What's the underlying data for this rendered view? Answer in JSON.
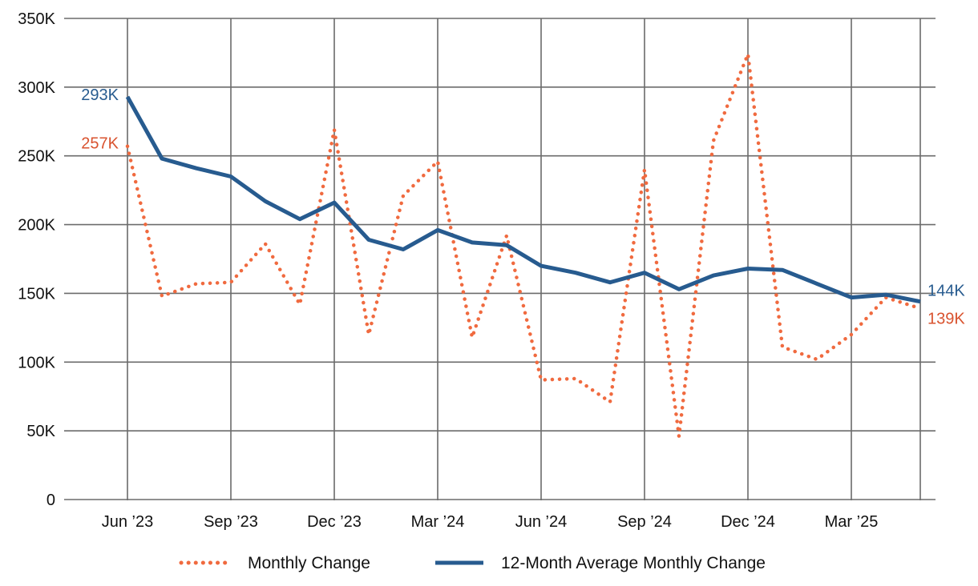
{
  "colors": {
    "monthly": "#f06a3f",
    "average": "#275b8f",
    "monthly_label": "#d9532f",
    "grid": "#6b6b6b"
  },
  "chart_data": {
    "type": "line",
    "title": "",
    "xlabel": "",
    "ylabel": "",
    "ylim": [
      0,
      350000
    ],
    "y_ticks": [
      0,
      50000,
      100000,
      150000,
      200000,
      250000,
      300000,
      350000
    ],
    "y_tick_labels": [
      "0",
      "50K",
      "100K",
      "150K",
      "200K",
      "250K",
      "300K",
      "350K"
    ],
    "x_tick_labels": [
      "Jun ’23",
      "Sep ’23",
      "Dec ’23",
      "Mar ’24",
      "Jun ’24",
      "Sep ’24",
      "Dec ’24",
      "Mar ’25"
    ],
    "x_tick_months": [
      "2023-06",
      "2023-09",
      "2023-12",
      "2024-03",
      "2024-06",
      "2024-09",
      "2024-12",
      "2025-03"
    ],
    "x": [
      "2023-06",
      "2023-07",
      "2023-08",
      "2023-09",
      "2023-10",
      "2023-11",
      "2023-12",
      "2024-01",
      "2024-02",
      "2024-03",
      "2024-04",
      "2024-05",
      "2024-06",
      "2024-07",
      "2024-08",
      "2024-09",
      "2024-10",
      "2024-11",
      "2024-12",
      "2025-01",
      "2025-02",
      "2025-03",
      "2025-04",
      "2025-05"
    ],
    "grid": true,
    "legend_position": "bottom",
    "series": [
      {
        "name": "Monthly Change",
        "style": "dotted",
        "color": "#f06a3f",
        "values": [
          257000,
          148000,
          157000,
          158000,
          186000,
          142000,
          269000,
          120000,
          221000,
          246000,
          118000,
          192000,
          87000,
          88000,
          71000,
          240000,
          46000,
          261000,
          324000,
          111000,
          102000,
          120000,
          147000,
          139000
        ]
      },
      {
        "name": "12-Month Average Monthly Change",
        "style": "solid",
        "color": "#275b8f",
        "values": [
          293000,
          248000,
          241000,
          235000,
          217000,
          204000,
          216000,
          189000,
          182000,
          196000,
          187000,
          185000,
          170000,
          165000,
          158000,
          165000,
          153000,
          163000,
          168000,
          167000,
          157000,
          147000,
          149000,
          144000
        ]
      }
    ],
    "annotations": {
      "average_start": "293K",
      "average_end": "144K",
      "monthly_start": "257K",
      "monthly_end": "139K"
    }
  }
}
